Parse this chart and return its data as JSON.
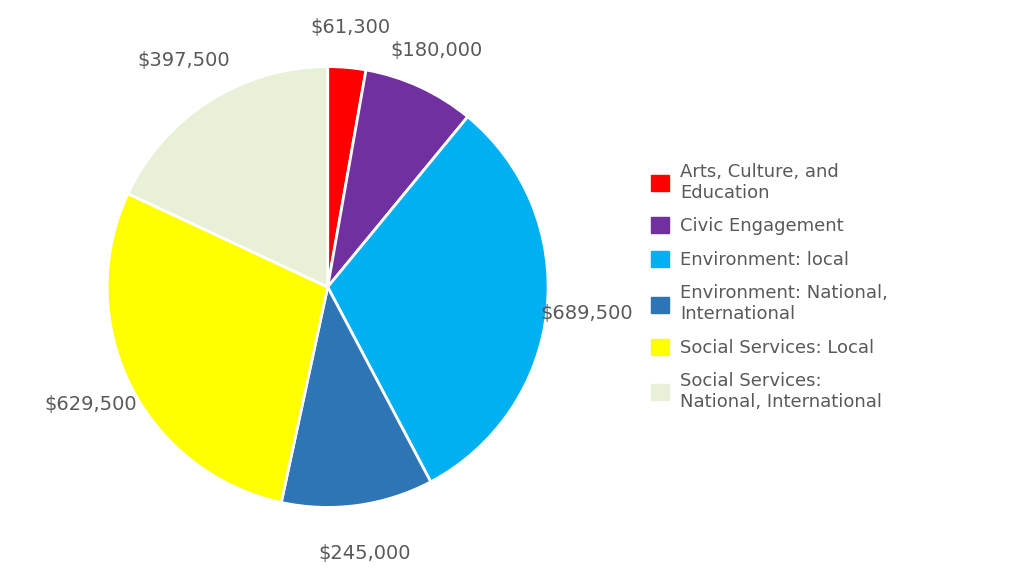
{
  "legend_labels": [
    "Arts, Culture, and\nEducation",
    "Civic Engagement",
    "Environment: local",
    "Environment: National,\nInternational",
    "Social Services: Local",
    "Social Services:\nNational, International"
  ],
  "values": [
    61300,
    180000,
    689500,
    245000,
    629500,
    397500
  ],
  "colors": [
    "#FF0000",
    "#7030A0",
    "#00B0F0",
    "#2E75B6",
    "#FFFF00",
    "#E8F0D8"
  ],
  "value_labels": [
    "$61,300",
    "$180,000",
    "$689,500",
    "$245,000",
    "$629,500",
    "$397,500"
  ],
  "startangle": 90,
  "background_color": "#FFFFFF",
  "text_color": "#595959",
  "font_size": 14
}
